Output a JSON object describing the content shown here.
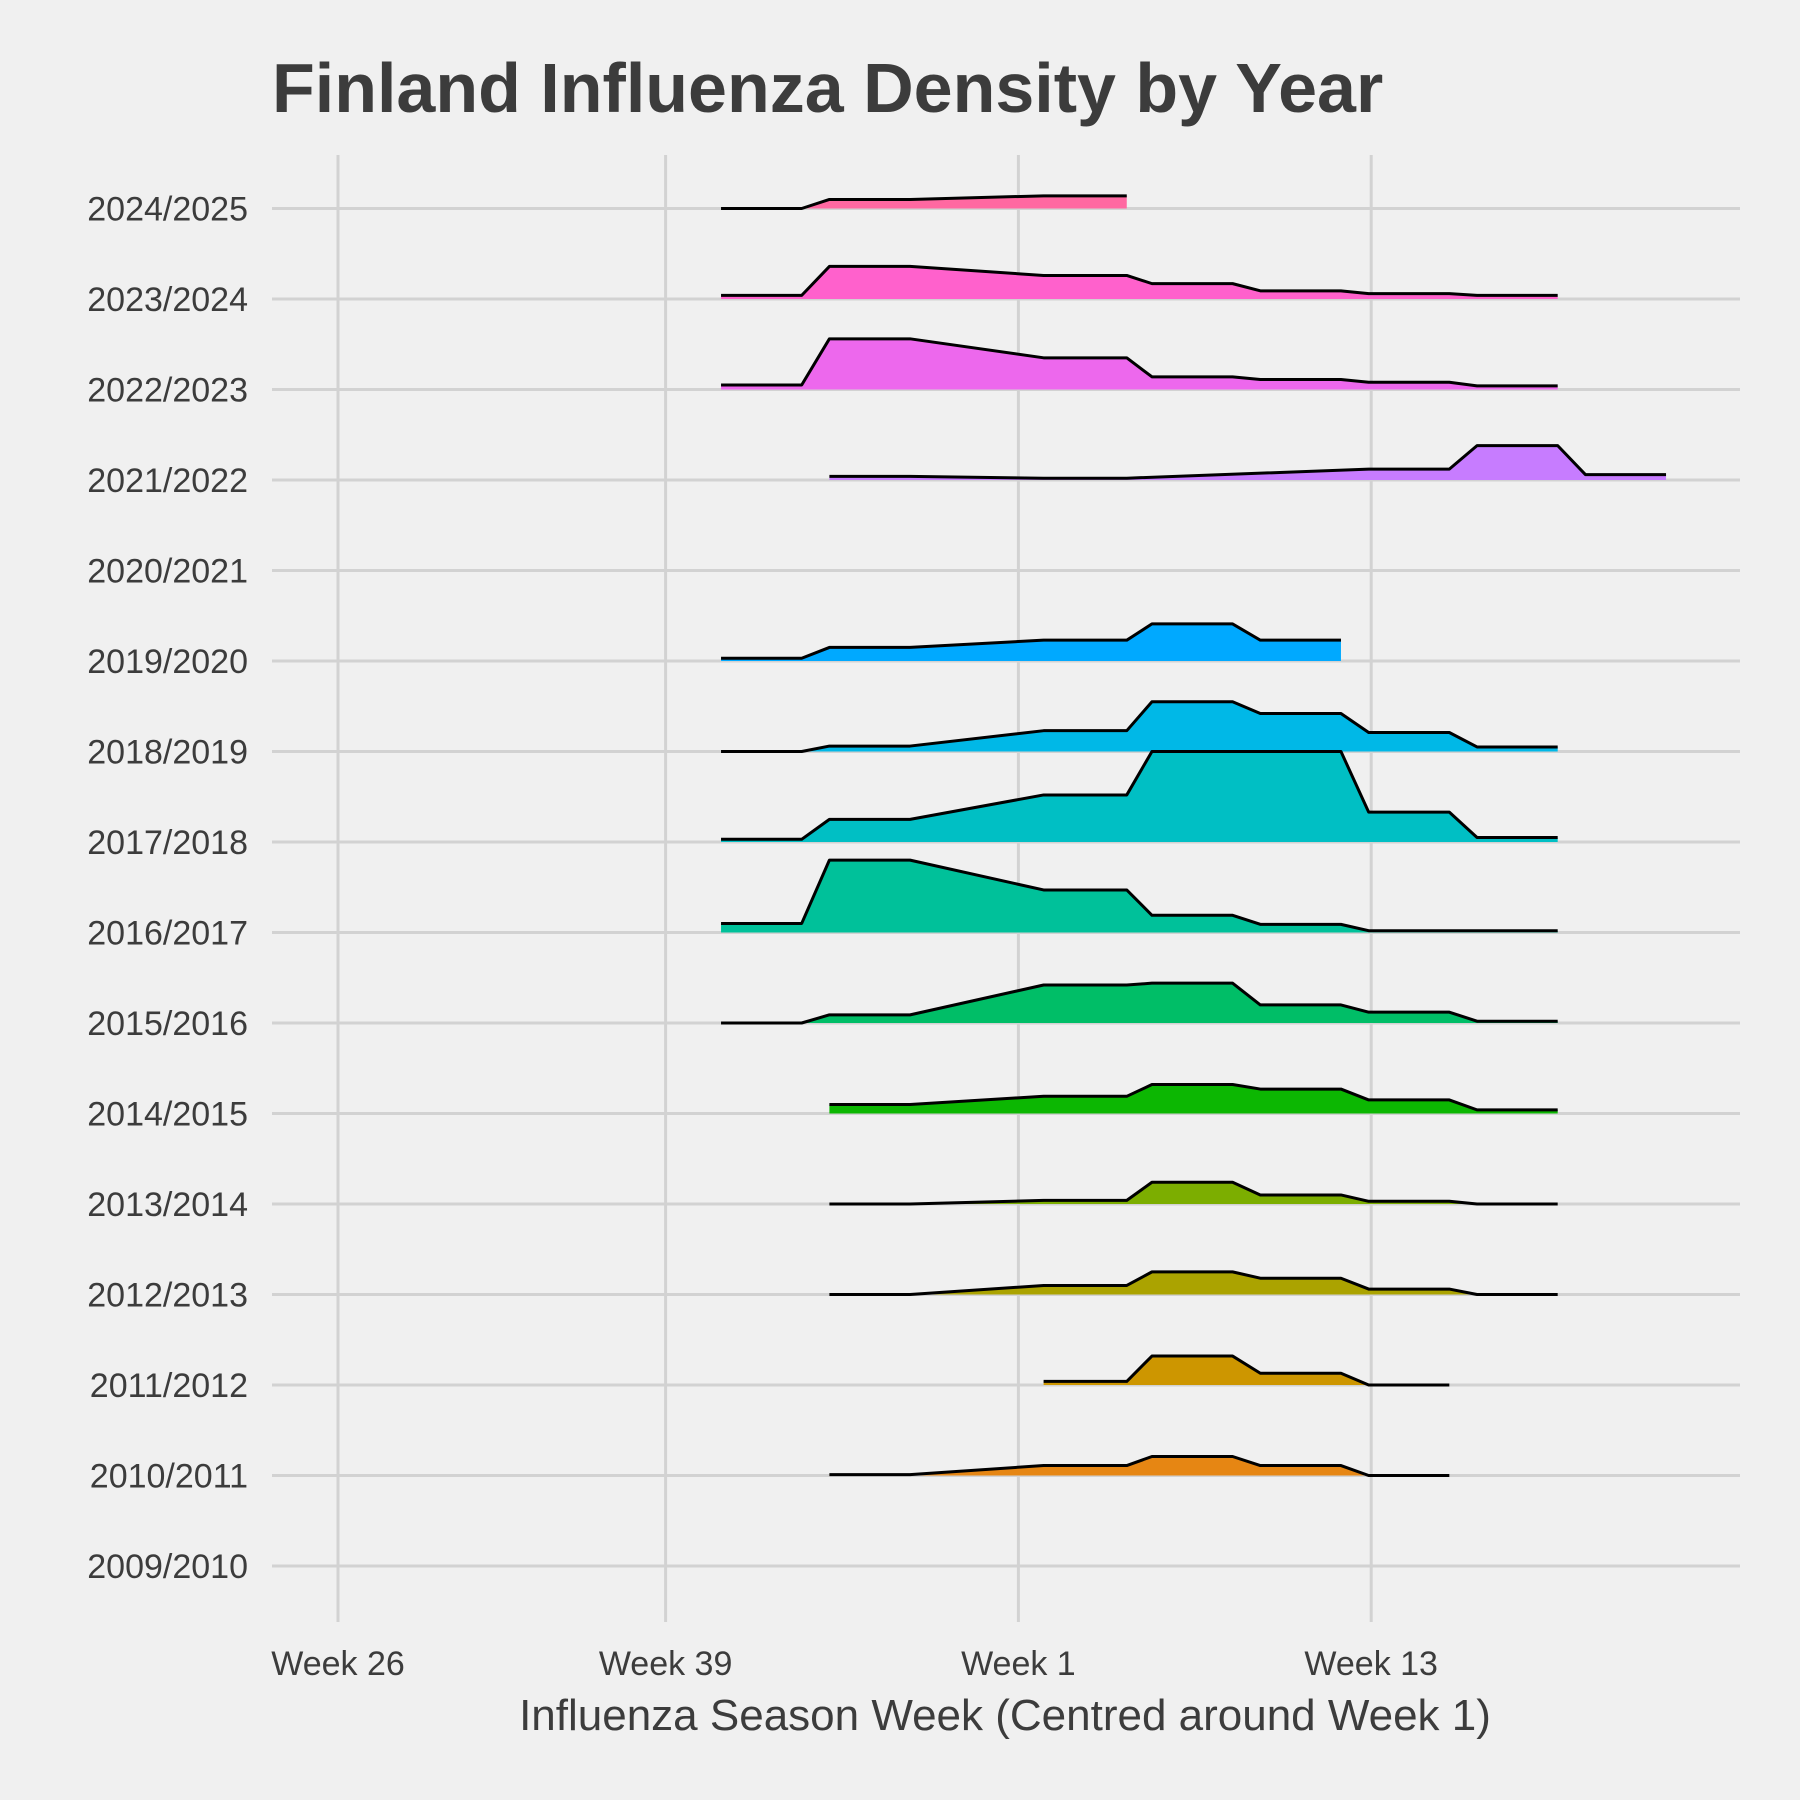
{
  "chart_data": {
    "type": "area",
    "subtype": "ridgeline",
    "title": "Finland Influenza Density by Year",
    "xlabel": "Influenza Season Week (Centred around Week 1)",
    "ylabel": "",
    "x_unit": "season week offset from Week 1 (negative = weeks of previous calendar year)",
    "x_ticks": [
      {
        "value": -27,
        "label": "Week 26"
      },
      {
        "value": -14,
        "label": "Week 39"
      },
      {
        "value": 0,
        "label": "Week 1"
      },
      {
        "value": 14,
        "label": "Week 13"
      }
    ],
    "xlim": [
      -30,
      31
    ],
    "categories": [
      "2009/2010",
      "2010/2011",
      "2011/2012",
      "2012/2013",
      "2013/2014",
      "2014/2015",
      "2015/2016",
      "2016/2017",
      "2017/2018",
      "2018/2019",
      "2019/2020",
      "2020/2021",
      "2021/2022",
      "2022/2023",
      "2023/2024",
      "2024/2025"
    ],
    "density_scale_note": "values are relative ridge heights (1.0 = one row spacing)",
    "series": [
      {
        "name": "2010/2011",
        "color": "#E68613",
        "x": [
          -7.5,
          -4.3,
          1,
          4.3,
          5.3,
          8.5,
          9.6,
          12.8,
          13.9,
          17.1
        ],
        "values": [
          0.01,
          0.01,
          0.11,
          0.11,
          0.21,
          0.21,
          0.11,
          0.11,
          0,
          0
        ]
      },
      {
        "name": "2011/2012",
        "color": "#CD9600",
        "x": [
          1,
          4.3,
          5.3,
          8.5,
          9.6,
          12.8,
          13.9,
          17.1
        ],
        "values": [
          0.04,
          0.04,
          0.32,
          0.32,
          0.13,
          0.13,
          0,
          0
        ]
      },
      {
        "name": "2012/2013",
        "color": "#ABA300",
        "x": [
          -7.5,
          -4.3,
          1,
          4.3,
          5.3,
          8.5,
          9.6,
          12.8,
          13.9,
          17.1,
          18.2,
          21.4
        ],
        "values": [
          0,
          0,
          0.1,
          0.1,
          0.25,
          0.25,
          0.18,
          0.18,
          0.06,
          0.06,
          0,
          0
        ]
      },
      {
        "name": "2013/2014",
        "color": "#7CAE00",
        "x": [
          -7.5,
          -4.3,
          1,
          4.3,
          5.3,
          8.5,
          9.6,
          12.8,
          13.9,
          17.1,
          18.2,
          21.4
        ],
        "values": [
          0,
          0,
          0.04,
          0.04,
          0.24,
          0.24,
          0.1,
          0.1,
          0.03,
          0.03,
          0,
          0
        ]
      },
      {
        "name": "2014/2015",
        "color": "#0CB702",
        "x": [
          -7.5,
          -4.3,
          1,
          4.3,
          5.3,
          8.5,
          9.6,
          12.8,
          13.9,
          17.1,
          18.2,
          21.4
        ],
        "values": [
          0.1,
          0.1,
          0.19,
          0.19,
          0.32,
          0.32,
          0.27,
          0.27,
          0.15,
          0.15,
          0.04,
          0.04
        ]
      },
      {
        "name": "2015/2016",
        "color": "#00BE67",
        "x": [
          -11.8,
          -8.6,
          -7.5,
          -4.3,
          1,
          4.3,
          5.3,
          8.5,
          9.6,
          12.8,
          13.9,
          17.1,
          18.2,
          21.4
        ],
        "values": [
          0,
          0,
          0.09,
          0.09,
          0.42,
          0.42,
          0.44,
          0.44,
          0.2,
          0.2,
          0.12,
          0.12,
          0.02,
          0.02
        ]
      },
      {
        "name": "2016/2017",
        "color": "#00C19A",
        "x": [
          -11.8,
          -8.6,
          -7.5,
          -4.3,
          1,
          4.3,
          5.3,
          8.5,
          9.6,
          12.8,
          13.9,
          17.1,
          18.2,
          21.4
        ],
        "values": [
          0.1,
          0.1,
          0.8,
          0.8,
          0.47,
          0.47,
          0.19,
          0.19,
          0.09,
          0.09,
          0.02,
          0.02,
          0.02,
          0.02
        ]
      },
      {
        "name": "2017/2018",
        "color": "#00BFC4",
        "x": [
          -11.8,
          -8.6,
          -7.5,
          -4.3,
          1,
          4.3,
          5.3,
          8.5,
          9.6,
          12.8,
          13.9,
          17.1,
          18.2,
          21.4
        ],
        "values": [
          0.03,
          0.03,
          0.25,
          0.25,
          0.52,
          0.52,
          1.0,
          1.0,
          1.0,
          1.0,
          0.33,
          0.33,
          0.05,
          0.05
        ]
      },
      {
        "name": "2018/2019",
        "color": "#00B8E7",
        "x": [
          -11.8,
          -8.6,
          -7.5,
          -4.3,
          1,
          4.3,
          5.3,
          8.5,
          9.6,
          12.8,
          13.9,
          17.1,
          18.2,
          21.4
        ],
        "values": [
          0,
          0,
          0.06,
          0.06,
          0.23,
          0.23,
          0.55,
          0.55,
          0.42,
          0.42,
          0.21,
          0.21,
          0.05,
          0.05
        ]
      },
      {
        "name": "2019/2020",
        "color": "#00A9FF",
        "x": [
          -11.8,
          -8.6,
          -7.5,
          -4.3,
          1,
          4.3,
          5.3,
          8.5,
          9.6,
          12.8
        ],
        "values": [
          0.03,
          0.03,
          0.15,
          0.15,
          0.23,
          0.23,
          0.41,
          0.41,
          0.23,
          0.23
        ]
      },
      {
        "name": "2021/2022",
        "color": "#C77CFF",
        "x": [
          -7.5,
          -4.3,
          1,
          4.3,
          13.9,
          17.1,
          18.2,
          21.4,
          22.5,
          25.7
        ],
        "values": [
          0.04,
          0.04,
          0.02,
          0.02,
          0.12,
          0.12,
          0.38,
          0.38,
          0.06,
          0.06
        ]
      },
      {
        "name": "2022/2023",
        "color": "#ED68ED",
        "x": [
          -11.8,
          -8.6,
          -7.5,
          -4.3,
          1,
          4.3,
          5.3,
          8.5,
          9.6,
          12.8,
          13.9,
          17.1,
          18.2,
          21.4
        ],
        "values": [
          0.05,
          0.05,
          0.56,
          0.56,
          0.35,
          0.35,
          0.14,
          0.14,
          0.11,
          0.11,
          0.08,
          0.08,
          0.04,
          0.04
        ]
      },
      {
        "name": "2023/2024",
        "color": "#FF61CC",
        "x": [
          -11.8,
          -8.6,
          -7.5,
          -4.3,
          1,
          4.3,
          5.3,
          8.5,
          9.6,
          12.8,
          13.9,
          17.1,
          18.2,
          21.4
        ],
        "values": [
          0.04,
          0.04,
          0.36,
          0.36,
          0.26,
          0.26,
          0.17,
          0.17,
          0.09,
          0.09,
          0.06,
          0.06,
          0.04,
          0.04
        ]
      },
      {
        "name": "2024/2025",
        "color": "#FF68A1",
        "x": [
          -11.8,
          -8.6,
          -7.5,
          -4.3,
          1,
          4.3
        ],
        "values": [
          0,
          0,
          0.1,
          0.1,
          0.14,
          0.14
        ]
      }
    ],
    "grid": true,
    "legend": "none"
  }
}
